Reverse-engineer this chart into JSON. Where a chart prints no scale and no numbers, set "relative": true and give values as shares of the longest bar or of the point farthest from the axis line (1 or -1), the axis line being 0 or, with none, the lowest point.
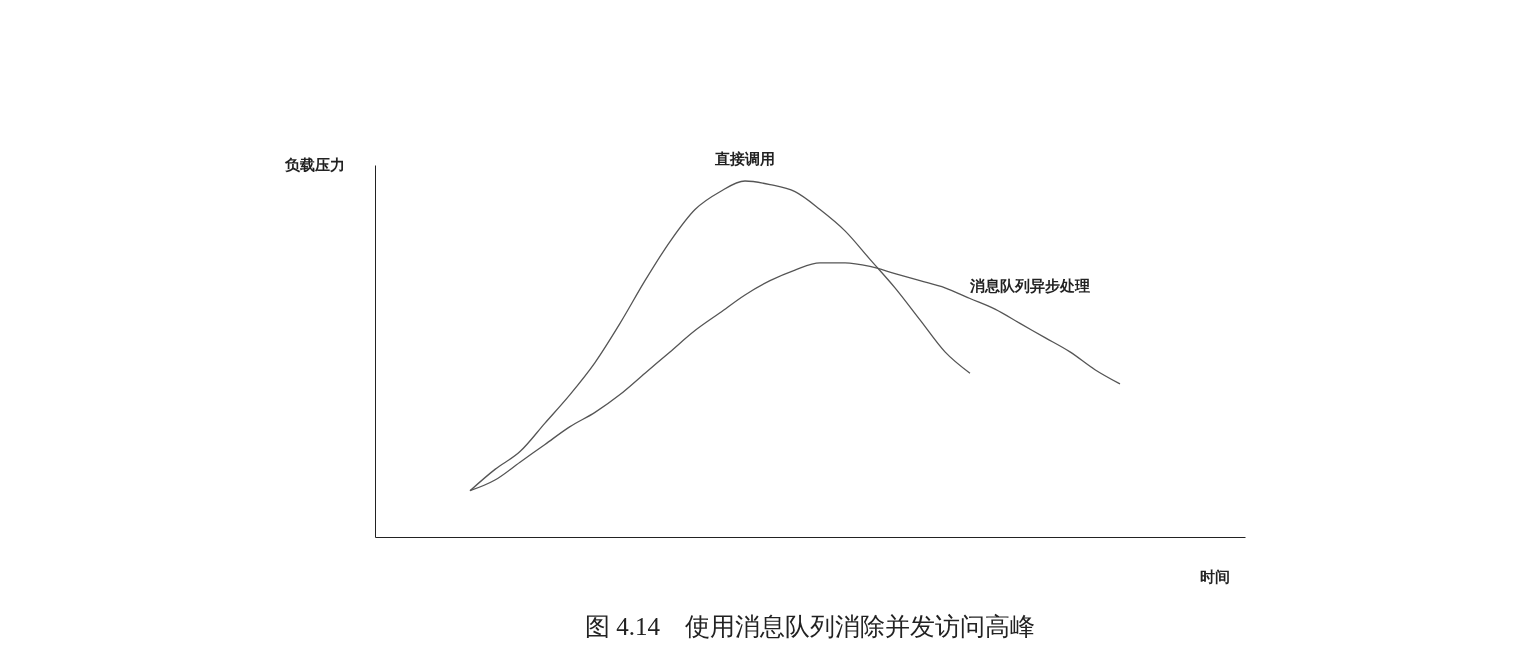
{
  "chart_data": {
    "type": "line",
    "relative": true,
    "title": "图 4.14　使用消息队列消除并发访问高峰",
    "annotations": [
      "负载压力",
      "时间"
    ],
    "legend": false,
    "grid": false,
    "marker": "none",
    "line_style": "solid",
    "categories": [
      null,
      null,
      null,
      null,
      null,
      null,
      null,
      null,
      null,
      null,
      null,
      null,
      null,
      null,
      null,
      null,
      null,
      null,
      null,
      null,
      null,
      null,
      null,
      null,
      null,
      null,
      null
    ],
    "series": [
      {
        "name": "直接调用",
        "color": "#555555",
        "values": [
          0.13,
          0.19,
          0.24,
          0.32,
          0.4,
          0.49,
          0.6,
          0.72,
          0.83,
          0.92,
          0.97,
          1.0,
          0.99,
          0.97,
          0.92,
          0.86,
          0.78,
          0.7,
          0.61,
          0.52,
          0.46,
          null,
          null,
          null,
          null,
          null,
          null
        ]
      },
      {
        "name": "消息队列异步处理",
        "color": "#555555",
        "values": [
          0.13,
          0.16,
          0.21,
          0.26,
          0.31,
          0.35,
          0.4,
          0.46,
          0.52,
          0.58,
          0.63,
          0.68,
          0.72,
          0.75,
          0.77,
          0.77,
          0.76,
          0.74,
          0.72,
          0.7,
          0.67,
          0.64,
          0.6,
          0.56,
          0.52,
          0.47,
          0.43
        ]
      }
    ]
  }
}
